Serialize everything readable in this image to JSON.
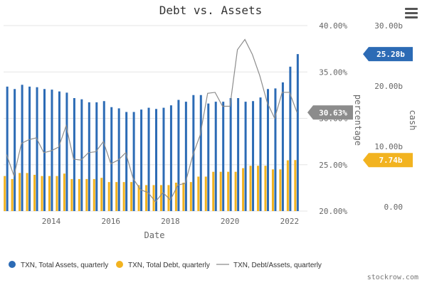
{
  "chart_data": {
    "type": "bar",
    "title": "Debt vs. Assets",
    "xlabel": "Date",
    "y_left_label": "percentage",
    "y_right_label": "cash",
    "x_ticks": [
      "2014",
      "2016",
      "2018",
      "2020",
      "2022"
    ],
    "pct_ticks": [
      "20.00%",
      "25.00%",
      "30.00%",
      "35.00%",
      "40.00%"
    ],
    "cash_ticks": [
      "0.00",
      "10.00b",
      "20.00b",
      "30.00b"
    ],
    "pct_range": [
      20,
      40
    ],
    "cash_range": [
      0,
      30
    ],
    "x_range": [
      2012.4,
      2022.6
    ],
    "series": [
      {
        "name": "TXN, Total Assets, quarterly",
        "color": "#2c6bb5",
        "unit": "billion USD",
        "x": [
          2012.5,
          2012.75,
          2013.0,
          2013.25,
          2013.5,
          2013.75,
          2014.0,
          2014.25,
          2014.5,
          2014.75,
          2015.0,
          2015.25,
          2015.5,
          2015.75,
          2016.0,
          2016.25,
          2016.5,
          2016.75,
          2017.0,
          2017.25,
          2017.5,
          2017.75,
          2018.0,
          2018.25,
          2018.5,
          2018.75,
          2019.0,
          2019.25,
          2019.5,
          2019.75,
          2020.0,
          2020.25,
          2020.5,
          2020.75,
          2021.0,
          2021.25,
          2021.5,
          2021.75,
          2022.0,
          2022.25
        ],
        "values": [
          19.9,
          19.5,
          20.2,
          19.9,
          19.8,
          19.5,
          19.4,
          19.1,
          18.9,
          18.0,
          17.8,
          17.3,
          17.3,
          17.5,
          16.5,
          16.3,
          15.7,
          15.7,
          16.1,
          16.4,
          16.2,
          16.4,
          16.8,
          17.7,
          17.4,
          18.5,
          18.5,
          17.1,
          17.4,
          17.4,
          18.0,
          18.0,
          17.4,
          17.5,
          18.1,
          19.5,
          19.6,
          20.6,
          23.2,
          25.28
        ]
      },
      {
        "name": "TXN, Total Debt, quarterly",
        "color": "#f2b320",
        "unit": "billion USD",
        "x": [
          2012.5,
          2012.75,
          2013.0,
          2013.25,
          2013.5,
          2013.75,
          2014.0,
          2014.25,
          2014.5,
          2014.75,
          2015.0,
          2015.25,
          2015.5,
          2015.75,
          2016.0,
          2016.25,
          2016.5,
          2016.75,
          2017.0,
          2017.25,
          2017.5,
          2017.75,
          2018.0,
          2018.25,
          2018.5,
          2018.75,
          2019.0,
          2019.25,
          2019.5,
          2019.75,
          2020.0,
          2020.25,
          2020.5,
          2020.75,
          2021.0,
          2021.25,
          2021.5,
          2021.75,
          2022.0,
          2022.25
        ],
        "values": [
          5.1,
          4.6,
          5.6,
          5.6,
          5.3,
          5.1,
          5.1,
          5.1,
          5.5,
          4.6,
          4.6,
          4.6,
          4.6,
          4.8,
          4.1,
          4.1,
          4.1,
          4.1,
          3.6,
          3.6,
          3.6,
          3.6,
          3.6,
          4.0,
          4.0,
          4.1,
          5.0,
          5.0,
          5.8,
          5.8,
          5.8,
          5.8,
          6.4,
          6.8,
          6.8,
          6.8,
          6.2,
          6.2,
          7.7,
          7.74
        ]
      },
      {
        "name": "TXN, Debt/Assets, quarterly",
        "color": "#8c8c8c",
        "type": "line",
        "unit": "percent",
        "x": [
          2012.5,
          2012.75,
          2013.0,
          2013.25,
          2013.5,
          2013.75,
          2014.0,
          2014.25,
          2014.5,
          2014.75,
          2015.0,
          2015.25,
          2015.5,
          2015.75,
          2016.0,
          2016.25,
          2016.5,
          2016.75,
          2017.0,
          2017.25,
          2017.5,
          2017.75,
          2018.0,
          2018.25,
          2018.5,
          2018.75,
          2019.0,
          2019.25,
          2019.5,
          2019.75,
          2020.0,
          2020.25,
          2020.5,
          2020.75,
          2021.0,
          2021.25,
          2021.5,
          2021.75,
          2022.0,
          2022.25
        ],
        "values": [
          26.1,
          23.8,
          27.3,
          27.7,
          27.9,
          26.3,
          26.5,
          26.9,
          29.2,
          25.6,
          25.5,
          26.3,
          26.4,
          27.5,
          25.1,
          25.5,
          26.3,
          23.5,
          22.3,
          22.0,
          21.0,
          22.0,
          21.2,
          22.8,
          23.0,
          26.0,
          28.2,
          32.7,
          32.8,
          31.3,
          31.3,
          37.4,
          38.5,
          36.9,
          34.6,
          31.7,
          30.0,
          32.8,
          32.8,
          30.63
        ]
      }
    ],
    "badges": [
      {
        "label": "25.28b",
        "color": "#2c6bb5",
        "axis": "cash",
        "value": 25.28
      },
      {
        "label": "30.63%",
        "color": "#8c8c8c",
        "axis": "pct",
        "value": 30.63
      },
      {
        "label": "7.74b",
        "color": "#f2b320",
        "axis": "cash",
        "value": 7.74
      }
    ],
    "legend_position": "bottom",
    "grid": true
  },
  "credit": "stockrow.com"
}
